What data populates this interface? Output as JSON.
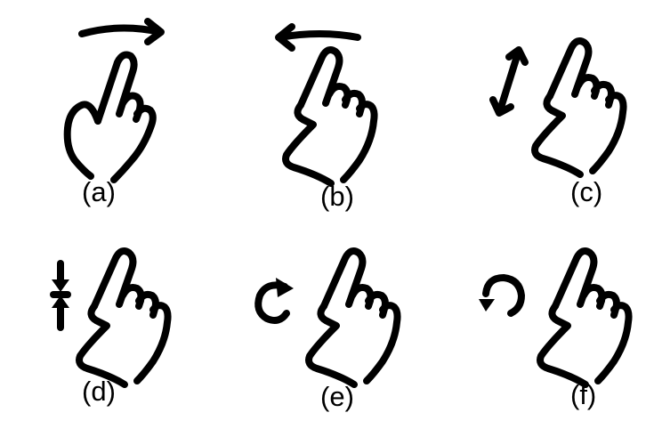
{
  "gestures": [
    {
      "caption": "(a)",
      "icon": "swipe-right-icon"
    },
    {
      "caption": "(b)",
      "icon": "swipe-left-icon"
    },
    {
      "caption": "(c)",
      "icon": "diagonal-drag-icon"
    },
    {
      "caption": "(d)",
      "icon": "pinch-vertical-icon"
    },
    {
      "caption": "(e)",
      "icon": "rotate-clockwise-icon"
    },
    {
      "caption": "(f)",
      "icon": "rotate-counterclockwise-icon"
    }
  ],
  "colors": {
    "ink": "#000000",
    "background": "#ffffff"
  }
}
